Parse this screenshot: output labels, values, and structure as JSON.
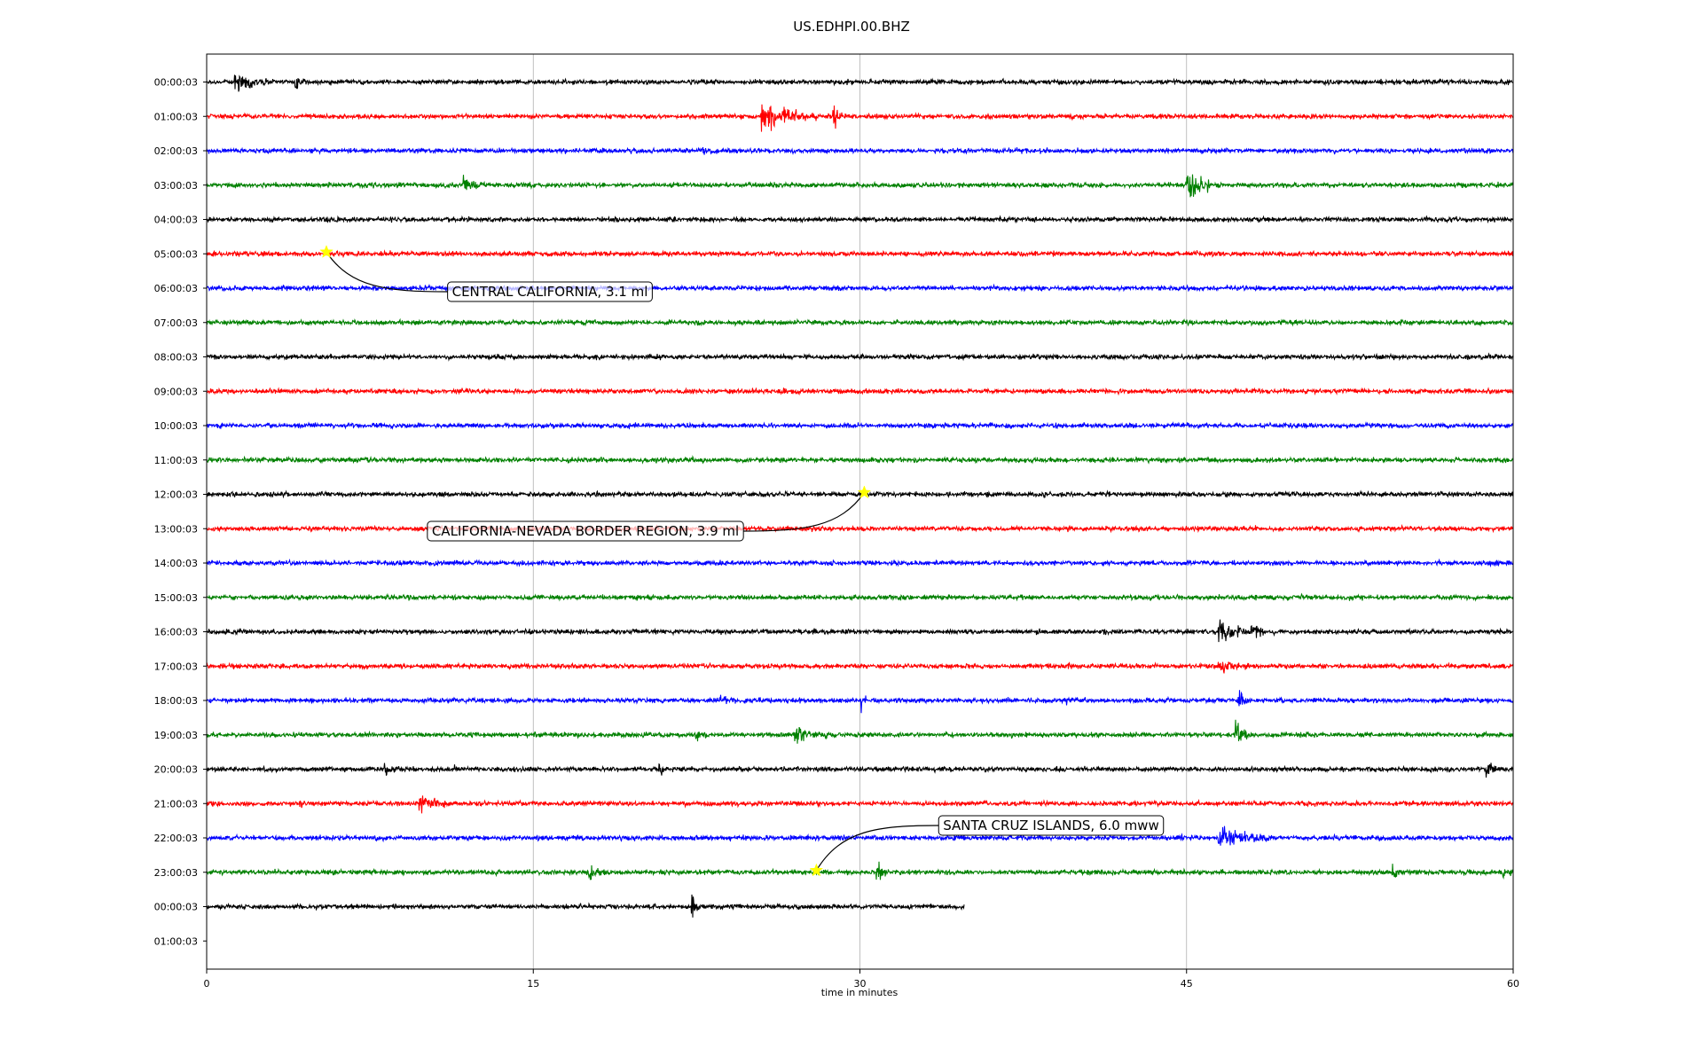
{
  "chart_data": {
    "type": "line",
    "title": "US.EDHPI.00.BHZ",
    "xlabel": "time in minutes",
    "xlim": [
      0,
      60
    ],
    "x_ticks": [
      "0",
      "15",
      "30",
      "45",
      "60"
    ],
    "grid": "vertical gridlines at x ticks",
    "row_labels": [
      "00:00:03",
      "01:00:03",
      "02:00:03",
      "03:00:03",
      "04:00:03",
      "05:00:03",
      "06:00:03",
      "07:00:03",
      "08:00:03",
      "09:00:03",
      "10:00:03",
      "11:00:03",
      "12:00:03",
      "13:00:03",
      "14:00:03",
      "15:00:03",
      "16:00:03",
      "17:00:03",
      "18:00:03",
      "19:00:03",
      "20:00:03",
      "21:00:03",
      "22:00:03",
      "23:00:03",
      "00:00:03",
      "01:00:03"
    ],
    "trace_colors": [
      "#000000",
      "#ff0000",
      "#0000ff",
      "#008000"
    ],
    "last_trace_end_minute": 34.8,
    "events": [
      {
        "label": "CENTRAL CALIFORNIA, 3.1 ml",
        "row": 5,
        "minute": 5.5
      },
      {
        "label": "CALIFORNIA-NEVADA BORDER REGION, 3.9 ml",
        "row": 12,
        "minute": 30.2
      },
      {
        "label": "SANTA CRUZ ISLANDS, 6.0 mww",
        "row": 23,
        "minute": 28.0
      }
    ],
    "bursts": [
      {
        "row": 0,
        "minute": 1.3,
        "amp": 0.7,
        "width": 1.8
      },
      {
        "row": 0,
        "minute": 4.1,
        "amp": 0.6,
        "width": 0.6
      },
      {
        "row": 1,
        "minute": 25.5,
        "amp": 1.0,
        "width": 2.5
      },
      {
        "row": 1,
        "minute": 28.8,
        "amp": 1.1,
        "width": 0.4
      },
      {
        "row": 2,
        "minute": 22.8,
        "amp": 0.25,
        "width": 1.0
      },
      {
        "row": 3,
        "minute": 11.8,
        "amp": 0.6,
        "width": 0.8
      },
      {
        "row": 3,
        "minute": 45.0,
        "amp": 1.4,
        "width": 1.2
      },
      {
        "row": 15,
        "minute": 52.5,
        "amp": 0.2,
        "width": 0.8
      },
      {
        "row": 16,
        "minute": 46.5,
        "amp": 0.6,
        "width": 2.0
      },
      {
        "row": 16,
        "minute": 48.0,
        "amp": 0.9,
        "width": 0.6
      },
      {
        "row": 17,
        "minute": 46.5,
        "amp": 0.6,
        "width": 1.3
      },
      {
        "row": 18,
        "minute": 23.5,
        "amp": 0.4,
        "width": 0.8
      },
      {
        "row": 18,
        "minute": 30.1,
        "amp": 0.7,
        "width": 0.2
      },
      {
        "row": 18,
        "minute": 47.4,
        "amp": 0.9,
        "width": 0.4
      },
      {
        "row": 18,
        "minute": 39.5,
        "amp": 0.25,
        "width": 1.0
      },
      {
        "row": 19,
        "minute": 27.0,
        "amp": 0.6,
        "width": 1.5
      },
      {
        "row": 19,
        "minute": 22.5,
        "amp": 0.4,
        "width": 0.8
      },
      {
        "row": 19,
        "minute": 47.3,
        "amp": 1.2,
        "width": 0.5
      },
      {
        "row": 20,
        "minute": 8.2,
        "amp": 0.5,
        "width": 0.8
      },
      {
        "row": 20,
        "minute": 11.4,
        "amp": 0.3,
        "width": 0.4
      },
      {
        "row": 20,
        "minute": 20.8,
        "amp": 0.3,
        "width": 0.4
      },
      {
        "row": 20,
        "minute": 58.8,
        "amp": 0.5,
        "width": 0.8
      },
      {
        "row": 21,
        "minute": 9.8,
        "amp": 0.7,
        "width": 1.2
      },
      {
        "row": 21,
        "minute": 4.3,
        "amp": 0.3,
        "width": 0.6
      },
      {
        "row": 22,
        "minute": 46.5,
        "amp": 0.8,
        "width": 2.6
      },
      {
        "row": 23,
        "minute": 17.5,
        "amp": 0.5,
        "width": 0.9
      },
      {
        "row": 23,
        "minute": 30.8,
        "amp": 0.6,
        "width": 0.6
      },
      {
        "row": 23,
        "minute": 54.5,
        "amp": 0.7,
        "width": 0.4
      },
      {
        "row": 23,
        "minute": 59.5,
        "amp": 0.5,
        "width": 0.5
      },
      {
        "row": 24,
        "minute": 22.3,
        "amp": 0.9,
        "width": 0.3
      }
    ]
  }
}
